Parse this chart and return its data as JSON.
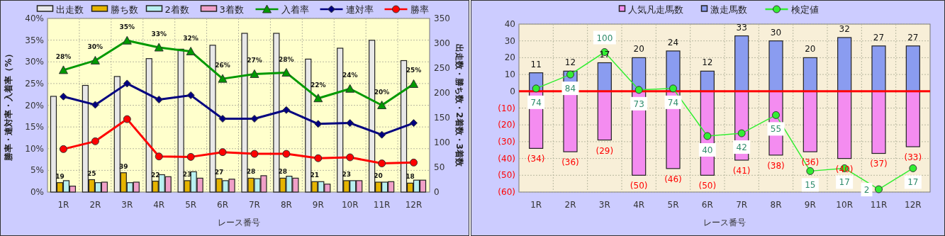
{
  "chart_data": [
    {
      "type": "bar",
      "xlabel": "レース番号",
      "ylabel": "勝率・連対率・入着率（%）",
      "y2label": "出走数・勝ち数・2着数・3着数",
      "categories": [
        "1R",
        "2R",
        "3R",
        "4R",
        "5R",
        "6R",
        "7R",
        "8R",
        "9R",
        "10R",
        "11R",
        "12R"
      ],
      "series": [
        {
          "name": "出走数",
          "type": "bar",
          "axis": "y2",
          "color": "#e8e8e8",
          "values": [
            193,
            215,
            233,
            269,
            288,
            296,
            320,
            320,
            268,
            290,
            306,
            265
          ]
        },
        {
          "name": "勝ち数",
          "type": "bar",
          "axis": "y2",
          "color": "#e6b400",
          "data_labels": true,
          "values": [
            19,
            25,
            39,
            22,
            23,
            27,
            28,
            28,
            21,
            23,
            20,
            18
          ]
        },
        {
          "name": "2着数",
          "type": "bar",
          "axis": "y2",
          "color": "#b8f0f0",
          "values": [
            23,
            19,
            19,
            35,
            41,
            23,
            27,
            32,
            21,
            23,
            20,
            24
          ]
        },
        {
          "name": "3着数",
          "type": "bar",
          "axis": "y2",
          "color": "#f0a0c8",
          "values": [
            12,
            20,
            20,
            31,
            28,
            26,
            33,
            28,
            16,
            23,
            21,
            24
          ]
        },
        {
          "name": "入着率",
          "type": "line",
          "marker": "triangle",
          "color": "#009900",
          "values": [
            28.1,
            30.3,
            34.9,
            33.3,
            32.4,
            26.1,
            27.2,
            27.5,
            21.6,
            23.8,
            20.0,
            24.9
          ],
          "value_labels": [
            "28%",
            "30%",
            "35%",
            "33%",
            "32%",
            "26%",
            "27%",
            "28%",
            "22%",
            "24%",
            "20%",
            "25%"
          ]
        },
        {
          "name": "連対率",
          "type": "line",
          "marker": "diamond",
          "color": "#000080",
          "values": [
            22.0,
            20.1,
            25.0,
            21.3,
            22.3,
            16.9,
            16.9,
            18.9,
            15.7,
            15.9,
            13.2,
            15.9
          ]
        },
        {
          "name": "勝率",
          "type": "line",
          "marker": "circle",
          "color": "#ff0000",
          "values": [
            9.9,
            11.7,
            16.8,
            8.2,
            8.1,
            9.2,
            8.8,
            8.8,
            7.8,
            8.0,
            6.6,
            6.8
          ]
        }
      ],
      "ylim": [
        0,
        40
      ],
      "yticks": [
        {
          "value": 0,
          "label": "0%"
        },
        {
          "value": 5,
          "label": "5%"
        },
        {
          "value": 10,
          "label": "10%"
        },
        {
          "value": 15,
          "label": "15%"
        },
        {
          "value": 20,
          "label": "20%"
        },
        {
          "value": 25,
          "label": "25%"
        },
        {
          "value": 30,
          "label": "30%"
        },
        {
          "value": 35,
          "label": "35%"
        },
        {
          "value": 40,
          "label": "40%"
        }
      ],
      "y2lim": [
        0,
        350
      ],
      "y2ticks": [
        0,
        50,
        100,
        150,
        200,
        250,
        300,
        350
      ],
      "grid": true,
      "legend": "top"
    },
    {
      "type": "bar",
      "xlabel": "レース番号",
      "stacked": true,
      "categories": [
        "1R",
        "2R",
        "3R",
        "4R",
        "5R",
        "6R",
        "7R",
        "8R",
        "9R",
        "10R",
        "11R",
        "12R"
      ],
      "series": [
        {
          "name": "人気凡走馬数",
          "type": "bar",
          "color": "#f48cf0",
          "values": [
            -34,
            -36,
            -29,
            -50,
            -46,
            -50,
            -41,
            -38,
            -36,
            -40,
            -37,
            -33
          ],
          "value_labels": [
            "(34)",
            "(36)",
            "(29)",
            "(50)",
            "(46)",
            "(50)",
            "(41)",
            "(38)",
            "(36)",
            "(40)",
            "(37)",
            "(33)"
          ]
        },
        {
          "name": "激走馬数",
          "type": "bar",
          "color": "#8a9cf0",
          "data_labels": true,
          "values": [
            11,
            12,
            17,
            20,
            24,
            12,
            33,
            30,
            20,
            32,
            27,
            27
          ]
        },
        {
          "name": "検定値",
          "type": "line",
          "axis": "y2",
          "marker": "circle",
          "color": "#33ee33",
          "data_labels": true,
          "values": [
            74,
            84,
            100,
            73,
            74,
            40,
            42,
            55,
            15,
            17,
            2,
            17
          ]
        }
      ],
      "ylim": [
        -60,
        40
      ],
      "yticks": [
        40,
        30,
        20,
        10,
        0,
        {
          "value": -10,
          "label": "(10)"
        },
        {
          "value": -20,
          "label": "(20)"
        },
        {
          "value": -30,
          "label": "(30)"
        },
        {
          "value": -40,
          "label": "(40)"
        },
        {
          "value": -50,
          "label": "(50)"
        },
        {
          "value": -60,
          "label": "(60)"
        }
      ],
      "y2lim": [
        0,
        120
      ],
      "ref_lines": [
        {
          "axis": "y",
          "value": 0,
          "color": "#ff0000"
        }
      ],
      "grid": true,
      "legend": "top"
    }
  ]
}
